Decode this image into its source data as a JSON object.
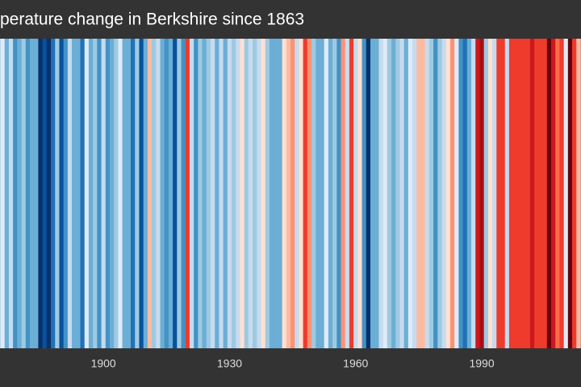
{
  "chart_data": {
    "type": "stripes",
    "title": "perature change in Berkshire since 1863",
    "x": [
      1875,
      1876,
      1877,
      1878,
      1879,
      1880,
      1881,
      1882,
      1883,
      1884,
      1885,
      1886,
      1887,
      1888,
      1889,
      1890,
      1891,
      1892,
      1893,
      1894,
      1895,
      1896,
      1897,
      1898,
      1899,
      1900,
      1901,
      1902,
      1903,
      1904,
      1905,
      1906,
      1907,
      1908,
      1909,
      1910,
      1911,
      1912,
      1913,
      1914,
      1915,
      1916,
      1917,
      1918,
      1919,
      1920,
      1921,
      1922,
      1923,
      1924,
      1925,
      1926,
      1927,
      1928,
      1929,
      1930,
      1931,
      1932,
      1933,
      1934,
      1935,
      1936,
      1937,
      1938,
      1939,
      1940,
      1941,
      1942,
      1943,
      1944,
      1945,
      1946,
      1947,
      1948,
      1949,
      1950,
      1951,
      1952,
      1953,
      1954,
      1955,
      1956,
      1957,
      1958,
      1959,
      1960,
      1961,
      1962,
      1963,
      1964,
      1965,
      1966,
      1967,
      1968,
      1969,
      1970,
      1971,
      1972,
      1973,
      1974,
      1975,
      1976,
      1977,
      1978,
      1979,
      1980,
      1981,
      1982,
      1983,
      1984,
      1985,
      1986,
      1987,
      1988,
      1989,
      1990,
      1991,
      1992,
      1993,
      1994,
      1995,
      1996,
      1997,
      1998,
      1999,
      2000,
      2001,
      2002,
      2003,
      2004,
      2005,
      2006,
      2007,
      2008,
      2009,
      2010,
      2011,
      2012,
      2013
    ],
    "values": [
      -0.3,
      -0.1,
      -0.5,
      -0.2,
      -0.6,
      -0.4,
      -0.3,
      -0.6,
      -0.5,
      -0.4,
      -0.9,
      -0.8,
      -0.9,
      -0.7,
      -0.3,
      -0.8,
      -0.6,
      -0.2,
      -0.5,
      -0.4,
      -0.7,
      -0.1,
      -0.4,
      -0.3,
      -0.6,
      -0.2,
      -0.6,
      -0.5,
      -0.3,
      -0.1,
      -0.5,
      -0.4,
      -0.7,
      -0.3,
      -0.8,
      -0.4,
      0.2,
      -0.3,
      -0.2,
      -0.4,
      -0.6,
      -0.5,
      -0.8,
      -0.3,
      -0.6,
      0.5,
      -0.2,
      -0.6,
      -0.3,
      -0.5,
      -0.3,
      -0.2,
      -0.4,
      -0.2,
      -0.5,
      -0.2,
      -0.3,
      -0.2,
      0.1,
      -0.3,
      -0.2,
      -0.3,
      -0.2,
      0.1,
      -0.3,
      -0.4,
      -0.4,
      -0.5,
      0.0,
      0.2,
      0.3,
      -0.2,
      0.1,
      0.6,
      0.3,
      -0.3,
      -0.4,
      -0.5,
      -0.1,
      -0.4,
      -0.3,
      -0.6,
      0.3,
      -0.2,
      0.6,
      -0.2,
      0.1,
      -0.6,
      -0.9,
      -0.5,
      -0.4,
      -0.2,
      -0.1,
      -0.3,
      -0.5,
      -0.3,
      -0.2,
      -0.5,
      -0.1,
      -0.2,
      0.2,
      0.2,
      -0.2,
      -0.3,
      -0.6,
      -0.3,
      -0.2,
      0.1,
      0.3,
      -0.1,
      -0.6,
      -0.7,
      -0.4,
      -0.2,
      0.7,
      0.8,
      -0.3,
      0.1,
      -0.2,
      0.5,
      0.6,
      -0.2,
      0.6,
      0.5,
      0.6,
      0.5,
      0.5,
      0.7,
      0.6,
      0.5,
      0.5,
      0.9,
      0.7,
      0.4,
      0.5,
      -0.1,
      0.9,
      0.5,
      0.2
    ],
    "vlim": [
      -1,
      1
    ],
    "palette": [
      "#08306b",
      "#08519c",
      "#2171b5",
      "#4292c6",
      "#6baed6",
      "#9ecae1",
      "#c6dbef",
      "#deebf7",
      "#fee0d2",
      "#fcbba1",
      "#fc9272",
      "#fb6a4a",
      "#ef3b2c",
      "#cb181d",
      "#a50f15",
      "#67000d"
    ],
    "xlim": [
      1875.4,
      2013.6
    ],
    "xticks": [
      1900,
      1930,
      1960,
      1990
    ]
  }
}
